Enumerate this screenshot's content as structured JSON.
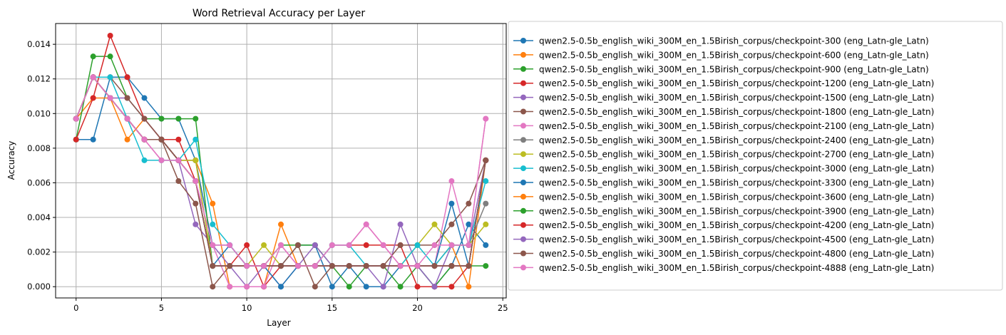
{
  "chart_data": {
    "type": "line",
    "title": "Word Retrieval Accuracy per Layer",
    "xlabel": "Layer",
    "ylabel": "Accuracy",
    "xlim": [
      -1.2,
      25.2
    ],
    "ylim": [
      -0.00065,
      0.0152
    ],
    "xticks": [
      0,
      5,
      10,
      15,
      20,
      25
    ],
    "yticks": [
      0.0,
      0.002,
      0.004,
      0.006,
      0.008,
      0.01,
      0.012,
      0.014
    ],
    "ytick_labels": [
      "0.000",
      "0.002",
      "0.004",
      "0.006",
      "0.008",
      "0.010",
      "0.012",
      "0.014"
    ],
    "grid": true,
    "legend_position": "outside right",
    "x": [
      0,
      1,
      2,
      3,
      4,
      5,
      6,
      7,
      8,
      9,
      10,
      11,
      12,
      13,
      14,
      15,
      16,
      17,
      18,
      19,
      20,
      21,
      22,
      23,
      24
    ],
    "series": [
      {
        "name": "qwen2.5-0.5b_english_wiki_300M_en_1.5Birish_corpus/checkpoint-300 (eng_Latn-gle_Latn)",
        "color": "#1f77b4",
        "values": [
          0.0085,
          0.0085,
          0.0121,
          0.0121,
          0.0109,
          0.0097,
          0.0097,
          0.0073,
          0.0024,
          0.0024,
          0.0012,
          0.0012,
          0.0012,
          0.0024,
          0.0024,
          0.0,
          0.0012,
          0.0,
          0.0,
          0.0012,
          0.0012,
          0.0,
          0.0012,
          0.0036,
          0.0024
        ]
      },
      {
        "name": "qwen2.5-0.5b_english_wiki_300M_en_1.5Birish_corpus/checkpoint-600 (eng_Latn-gle_Latn)",
        "color": "#ff7f0e",
        "values": [
          0.0097,
          0.0109,
          0.0109,
          0.0085,
          0.0097,
          0.0085,
          0.0073,
          0.0073,
          0.0048,
          0.0,
          0.0,
          0.0,
          0.0036,
          0.0012,
          0.0012,
          0.0012,
          0.0012,
          0.0012,
          0.0012,
          0.0012,
          0.0012,
          0.0012,
          0.0024,
          0.0,
          0.0073
        ]
      },
      {
        "name": "qwen2.5-0.5b_english_wiki_300M_en_1.5Birish_corpus/checkpoint-900 (eng_Latn-gle_Latn)",
        "color": "#2ca02c",
        "values": [
          0.0085,
          0.0133,
          0.0133,
          0.0109,
          0.0097,
          0.0097,
          0.0097,
          0.0097,
          0.0012,
          0.0012,
          0.0012,
          0.0012,
          0.0024,
          0.0024,
          0.0024,
          0.0012,
          0.0,
          0.0012,
          0.0012,
          0.0,
          0.0012,
          0.0,
          0.0012,
          0.0012,
          0.0012
        ]
      },
      {
        "name": "qwen2.5-0.5b_english_wiki_300M_en_1.5Birish_corpus/checkpoint-1200 (eng_Latn-gle_Latn)",
        "color": "#d62728",
        "values": [
          0.0085,
          0.0109,
          0.0145,
          0.0121,
          0.0097,
          0.0085,
          0.0085,
          0.0061,
          0.0012,
          0.0012,
          0.0024,
          0.0,
          0.0012,
          0.0012,
          0.0012,
          0.0024,
          0.0024,
          0.0024,
          0.0024,
          0.0024,
          0.0,
          0.0,
          0.0,
          0.0012,
          0.0073
        ]
      },
      {
        "name": "qwen2.5-0.5b_english_wiki_300M_en_1.5Birish_corpus/checkpoint-1500 (eng_Latn-gle_Latn)",
        "color": "#9467bd",
        "values": [
          0.0097,
          0.0121,
          0.0109,
          0.0109,
          0.0097,
          0.0085,
          0.0073,
          0.0036,
          0.0024,
          0.0012,
          0.0,
          0.0012,
          0.0,
          0.0012,
          0.0024,
          0.0012,
          0.0012,
          0.0012,
          0.0,
          0.0036,
          0.0012,
          0.0,
          0.0024,
          0.0024,
          0.0073
        ]
      },
      {
        "name": "qwen2.5-0.5b_english_wiki_300M_en_1.5Birish_corpus/checkpoint-1800 (eng_Latn-gle_Latn)",
        "color": "#8c564b",
        "values": [
          0.0097,
          0.0121,
          0.0121,
          0.0109,
          0.0097,
          0.0085,
          0.0061,
          0.0048,
          0.0,
          0.0012,
          0.0012,
          0.0012,
          0.0012,
          0.0024,
          0.0,
          0.0012,
          0.0012,
          0.0012,
          0.0012,
          0.0024,
          0.0024,
          0.0024,
          0.0036,
          0.0048,
          0.0073
        ]
      },
      {
        "name": "qwen2.5-0.5b_english_wiki_300M_en_1.5Birish_corpus/checkpoint-2100 (eng_Latn-gle_Latn)",
        "color": "#e377c2",
        "values": [
          0.0097,
          0.0121,
          0.0109,
          0.0097,
          0.0085,
          0.0073,
          0.0073,
          0.0061,
          0.0024,
          0.0,
          0.0,
          0.0,
          0.0024,
          0.0012,
          0.0012,
          0.0024,
          0.0024,
          0.0036,
          0.0024,
          0.0012,
          0.0012,
          0.0012,
          0.0061,
          0.0024,
          0.0097
        ]
      },
      {
        "name": "qwen2.5-0.5b_english_wiki_300M_en_1.5Birish_corpus/checkpoint-2400 (eng_Latn-gle_Latn)",
        "color": "#7f7f7f",
        "values": [
          0.0097,
          0.0121,
          0.0109,
          0.0097,
          0.0085,
          0.0085,
          0.0073,
          0.0073,
          0.0012,
          0.0012,
          0.0012,
          0.0012,
          0.0012,
          0.0012,
          0.0012,
          0.0012,
          0.0012,
          0.0012,
          0.0012,
          0.0012,
          0.0012,
          0.0012,
          0.0024,
          0.0024,
          0.0048
        ]
      },
      {
        "name": "qwen2.5-0.5b_english_wiki_300M_en_1.5Birish_corpus/checkpoint-2700 (eng_Latn-gle_Latn)",
        "color": "#bcbd22",
        "values": [
          0.0097,
          0.0121,
          0.0109,
          0.0097,
          0.0085,
          0.0085,
          0.0073,
          0.0073,
          0.0012,
          0.0012,
          0.0012,
          0.0024,
          0.0012,
          0.0012,
          0.0012,
          0.0012,
          0.0012,
          0.0012,
          0.0012,
          0.0012,
          0.0024,
          0.0036,
          0.0024,
          0.0024,
          0.0036
        ]
      },
      {
        "name": "qwen2.5-0.5b_english_wiki_300M_en_1.5Birish_corpus/checkpoint-3000 (eng_Latn-gle_Latn)",
        "color": "#17becf",
        "values": [
          0.0097,
          0.0121,
          0.0121,
          0.0097,
          0.0073,
          0.0073,
          0.0073,
          0.0085,
          0.0036,
          0.0024,
          0.0012,
          0.0012,
          0.0012,
          0.0012,
          0.0012,
          0.0024,
          0.0024,
          0.0012,
          0.0012,
          0.0012,
          0.0024,
          0.0012,
          0.0024,
          0.0024,
          0.0061
        ]
      },
      {
        "name": "qwen2.5-0.5b_english_wiki_300M_en_1.5Birish_corpus/checkpoint-3300 (eng_Latn-gle_Latn)",
        "color": "#1f77b4",
        "values": [
          0.0097,
          0.0121,
          0.0109,
          0.0097,
          0.0085,
          0.0085,
          0.0073,
          0.0061,
          0.0012,
          0.0024,
          0.0012,
          0.0012,
          0.0,
          0.0012,
          0.0012,
          0.0012,
          0.0012,
          0.0012,
          0.0012,
          0.0012,
          0.0012,
          0.0012,
          0.0048,
          0.0012,
          0.0073
        ]
      },
      {
        "name": "qwen2.5-0.5b_english_wiki_300M_en_1.5Birish_corpus/checkpoint-3600 (eng_Latn-gle_Latn)",
        "color": "#ff7f0e",
        "values": [
          0.0097,
          0.0121,
          0.0109,
          0.0097,
          0.0085,
          0.0085,
          0.0073,
          0.0061,
          0.0012,
          0.0012,
          0.0012,
          0.0012,
          0.0012,
          0.0012,
          0.0012,
          0.0012,
          0.0012,
          0.0012,
          0.0012,
          0.0012,
          0.0012,
          0.0012,
          0.0012,
          0.0012,
          0.0073
        ]
      },
      {
        "name": "qwen2.5-0.5b_english_wiki_300M_en_1.5Birish_corpus/checkpoint-3900 (eng_Latn-gle_Latn)",
        "color": "#2ca02c",
        "values": [
          0.0097,
          0.0121,
          0.0109,
          0.0097,
          0.0085,
          0.0085,
          0.0073,
          0.0061,
          0.0012,
          0.0012,
          0.0012,
          0.0012,
          0.0012,
          0.0012,
          0.0012,
          0.0012,
          0.0012,
          0.0012,
          0.0012,
          0.0012,
          0.0012,
          0.0012,
          0.0012,
          0.0012,
          0.0073
        ]
      },
      {
        "name": "qwen2.5-0.5b_english_wiki_300M_en_1.5Birish_corpus/checkpoint-4200 (eng_Latn-gle_Latn)",
        "color": "#d62728",
        "values": [
          0.0097,
          0.0121,
          0.0109,
          0.0097,
          0.0085,
          0.0085,
          0.0073,
          0.0061,
          0.0012,
          0.0012,
          0.0012,
          0.0012,
          0.0012,
          0.0012,
          0.0012,
          0.0012,
          0.0012,
          0.0012,
          0.0012,
          0.0012,
          0.0012,
          0.0012,
          0.0012,
          0.0012,
          0.0073
        ]
      },
      {
        "name": "qwen2.5-0.5b_english_wiki_300M_en_1.5Birish_corpus/checkpoint-4500 (eng_Latn-gle_Latn)",
        "color": "#9467bd",
        "values": [
          0.0097,
          0.0121,
          0.0109,
          0.0097,
          0.0085,
          0.0085,
          0.0073,
          0.0061,
          0.0012,
          0.0012,
          0.0012,
          0.0012,
          0.0012,
          0.0012,
          0.0012,
          0.0012,
          0.0012,
          0.0012,
          0.0012,
          0.0012,
          0.0012,
          0.0012,
          0.0012,
          0.0012,
          0.0073
        ]
      },
      {
        "name": "qwen2.5-0.5b_english_wiki_300M_en_1.5Birish_corpus/checkpoint-4800 (eng_Latn-gle_Latn)",
        "color": "#8c564b",
        "values": [
          0.0097,
          0.0121,
          0.0109,
          0.0097,
          0.0085,
          0.0085,
          0.0073,
          0.0061,
          0.0012,
          0.0012,
          0.0012,
          0.0012,
          0.0012,
          0.0012,
          0.0012,
          0.0012,
          0.0012,
          0.0012,
          0.0012,
          0.0012,
          0.0012,
          0.0012,
          0.0012,
          0.0012,
          0.0073
        ]
      },
      {
        "name": "qwen2.5-0.5b_english_wiki_300M_en_1.5Birish_corpus/checkpoint-4888 (eng_Latn-gle_Latn)",
        "color": "#e377c2",
        "values": [
          0.0097,
          0.0121,
          0.0109,
          0.0097,
          0.0085,
          0.0073,
          0.0073,
          0.0061,
          0.0024,
          0.0024,
          0.0012,
          0.0012,
          0.0024,
          0.0012,
          0.0012,
          0.0024,
          0.0024,
          0.0036,
          0.0024,
          0.0012,
          0.0012,
          0.0024,
          0.0024,
          0.0024,
          0.0097
        ]
      }
    ]
  }
}
